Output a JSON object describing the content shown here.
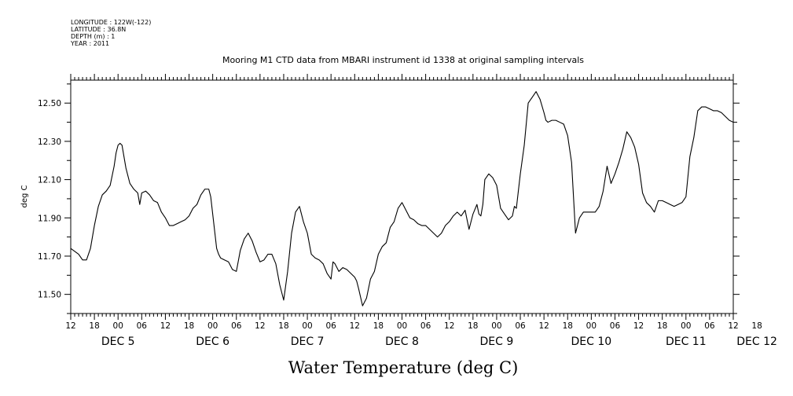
{
  "header": {
    "longitude": "LONGITUDE : 122W(-122)",
    "latitude": "LATITUDE : 36.8N",
    "depth": "DEPTH (m) : 1",
    "year": "YEAR : 2011"
  },
  "chart_data": {
    "type": "line",
    "title": "Mooring M1 CTD data from MBARI instrument id 1338 at original sampling intervals",
    "xlabel": "Water Temperature (deg C)",
    "ylabel": "deg C",
    "x_units": "hours since DEC 4 2011 12:00",
    "xlim": [
      0,
      168
    ],
    "ylim": [
      11.4,
      12.62
    ],
    "yticks": [
      "11.50",
      "11.70",
      "11.90",
      "12.10",
      "12.30",
      "12.50"
    ],
    "xtick_hours": [
      "12",
      "18",
      "00",
      "06",
      "12",
      "18",
      "00",
      "06",
      "12",
      "18",
      "00",
      "06",
      "12",
      "18",
      "00",
      "06",
      "12",
      "18",
      "00",
      "06",
      "12",
      "18",
      "00",
      "06",
      "12",
      "18",
      "00",
      "06",
      "12",
      "18"
    ],
    "xtick_first_hour": 0,
    "xtick_step": 6,
    "day_labels": [
      {
        "text": "DEC  5",
        "x": 12
      },
      {
        "text": "DEC  6",
        "x": 36
      },
      {
        "text": "DEC  7",
        "x": 60
      },
      {
        "text": "DEC  8",
        "x": 84
      },
      {
        "text": "DEC  9",
        "x": 108
      },
      {
        "text": "DEC 10",
        "x": 132
      },
      {
        "text": "DEC 11",
        "x": 156
      },
      {
        "text": "DEC 12",
        "x": 174
      }
    ],
    "grid": false,
    "series": [
      {
        "x": [
          0,
          2,
          3,
          4,
          5,
          6,
          7,
          8,
          9,
          10,
          11,
          11.5,
          12,
          12.5,
          13,
          14,
          15,
          16,
          17,
          17.5,
          18,
          19,
          20,
          21,
          22,
          23,
          24,
          25,
          26,
          27,
          28,
          29,
          30,
          31,
          32,
          33,
          34,
          35,
          35.5,
          36,
          37,
          37.5,
          38,
          39,
          40,
          41,
          42,
          43,
          44,
          45,
          46,
          47,
          48,
          49,
          50,
          51,
          52,
          53,
          54,
          55,
          55.5,
          56,
          57,
          58,
          59,
          60,
          61,
          62,
          63,
          64,
          65,
          66,
          66.5,
          67,
          68,
          69,
          70,
          71,
          72,
          72.5,
          73,
          74,
          75,
          76,
          77,
          78,
          79,
          80,
          81,
          82,
          83,
          84,
          85,
          86,
          87,
          88,
          89,
          90,
          91,
          92,
          93,
          94,
          95,
          96,
          97,
          98,
          99,
          100,
          101,
          102,
          103,
          103.5,
          104,
          104.5,
          105,
          106,
          107,
          108,
          109,
          110,
          111,
          112,
          112.5,
          113,
          114,
          115,
          116,
          117,
          118,
          119,
          120,
          120.5,
          121,
          122,
          123,
          124,
          125,
          126,
          127,
          128,
          129,
          130,
          131,
          132,
          133,
          134,
          135,
          136,
          137,
          138,
          139,
          140,
          141,
          142,
          143,
          144,
          145,
          146,
          147,
          148,
          149,
          150,
          151,
          152,
          153,
          154,
          155,
          156,
          157,
          158,
          159,
          160,
          161,
          162,
          163,
          164,
          165,
          166,
          167,
          168
        ],
        "y": [
          11.74,
          11.71,
          11.68,
          11.68,
          11.74,
          11.86,
          11.96,
          12.02,
          12.04,
          12.07,
          12.17,
          12.24,
          12.28,
          12.29,
          12.28,
          12.16,
          12.08,
          12.05,
          12.03,
          11.97,
          12.03,
          12.04,
          12.02,
          11.99,
          11.98,
          11.93,
          11.9,
          11.86,
          11.86,
          11.87,
          11.88,
          11.89,
          11.91,
          11.95,
          11.97,
          12.02,
          12.05,
          12.05,
          12.01,
          11.92,
          11.74,
          11.71,
          11.69,
          11.68,
          11.67,
          11.63,
          11.62,
          11.73,
          11.79,
          11.82,
          11.78,
          11.72,
          11.67,
          11.68,
          11.71,
          11.71,
          11.66,
          11.55,
          11.47,
          11.62,
          11.72,
          11.82,
          11.93,
          11.96,
          11.88,
          11.82,
          11.71,
          11.69,
          11.68,
          11.66,
          11.61,
          11.58,
          11.67,
          11.66,
          11.62,
          11.64,
          11.63,
          11.61,
          11.59,
          11.57,
          11.53,
          11.44,
          11.48,
          11.58,
          11.62,
          11.71,
          11.75,
          11.77,
          11.85,
          11.88,
          11.95,
          11.98,
          11.94,
          11.9,
          11.89,
          11.87,
          11.86,
          11.86,
          11.84,
          11.82,
          11.8,
          11.82,
          11.86,
          11.88,
          11.91,
          11.93,
          11.91,
          11.94,
          11.84,
          11.92,
          11.97,
          11.92,
          11.91,
          11.97,
          12.1,
          12.13,
          12.11,
          12.07,
          11.95,
          11.92,
          11.89,
          11.91,
          11.96,
          11.95,
          12.13,
          12.28,
          12.5,
          12.53,
          12.56,
          12.52,
          12.45,
          12.41,
          12.4,
          12.41,
          12.41,
          12.4,
          12.39,
          12.33,
          12.19,
          11.82,
          11.9,
          11.93,
          11.93,
          11.93,
          11.93,
          11.96,
          12.04,
          12.17,
          12.08,
          12.13,
          12.19,
          12.26,
          12.35,
          12.32,
          12.27,
          12.18,
          12.03,
          11.98,
          11.96,
          11.93,
          11.99,
          11.99,
          11.98,
          11.97,
          11.96,
          11.97,
          11.98,
          12.01,
          12.22,
          12.32,
          12.46,
          12.48,
          12.48,
          12.47,
          12.46,
          12.46,
          12.45,
          12.43,
          12.41,
          12.4
        ]
      }
    ]
  }
}
